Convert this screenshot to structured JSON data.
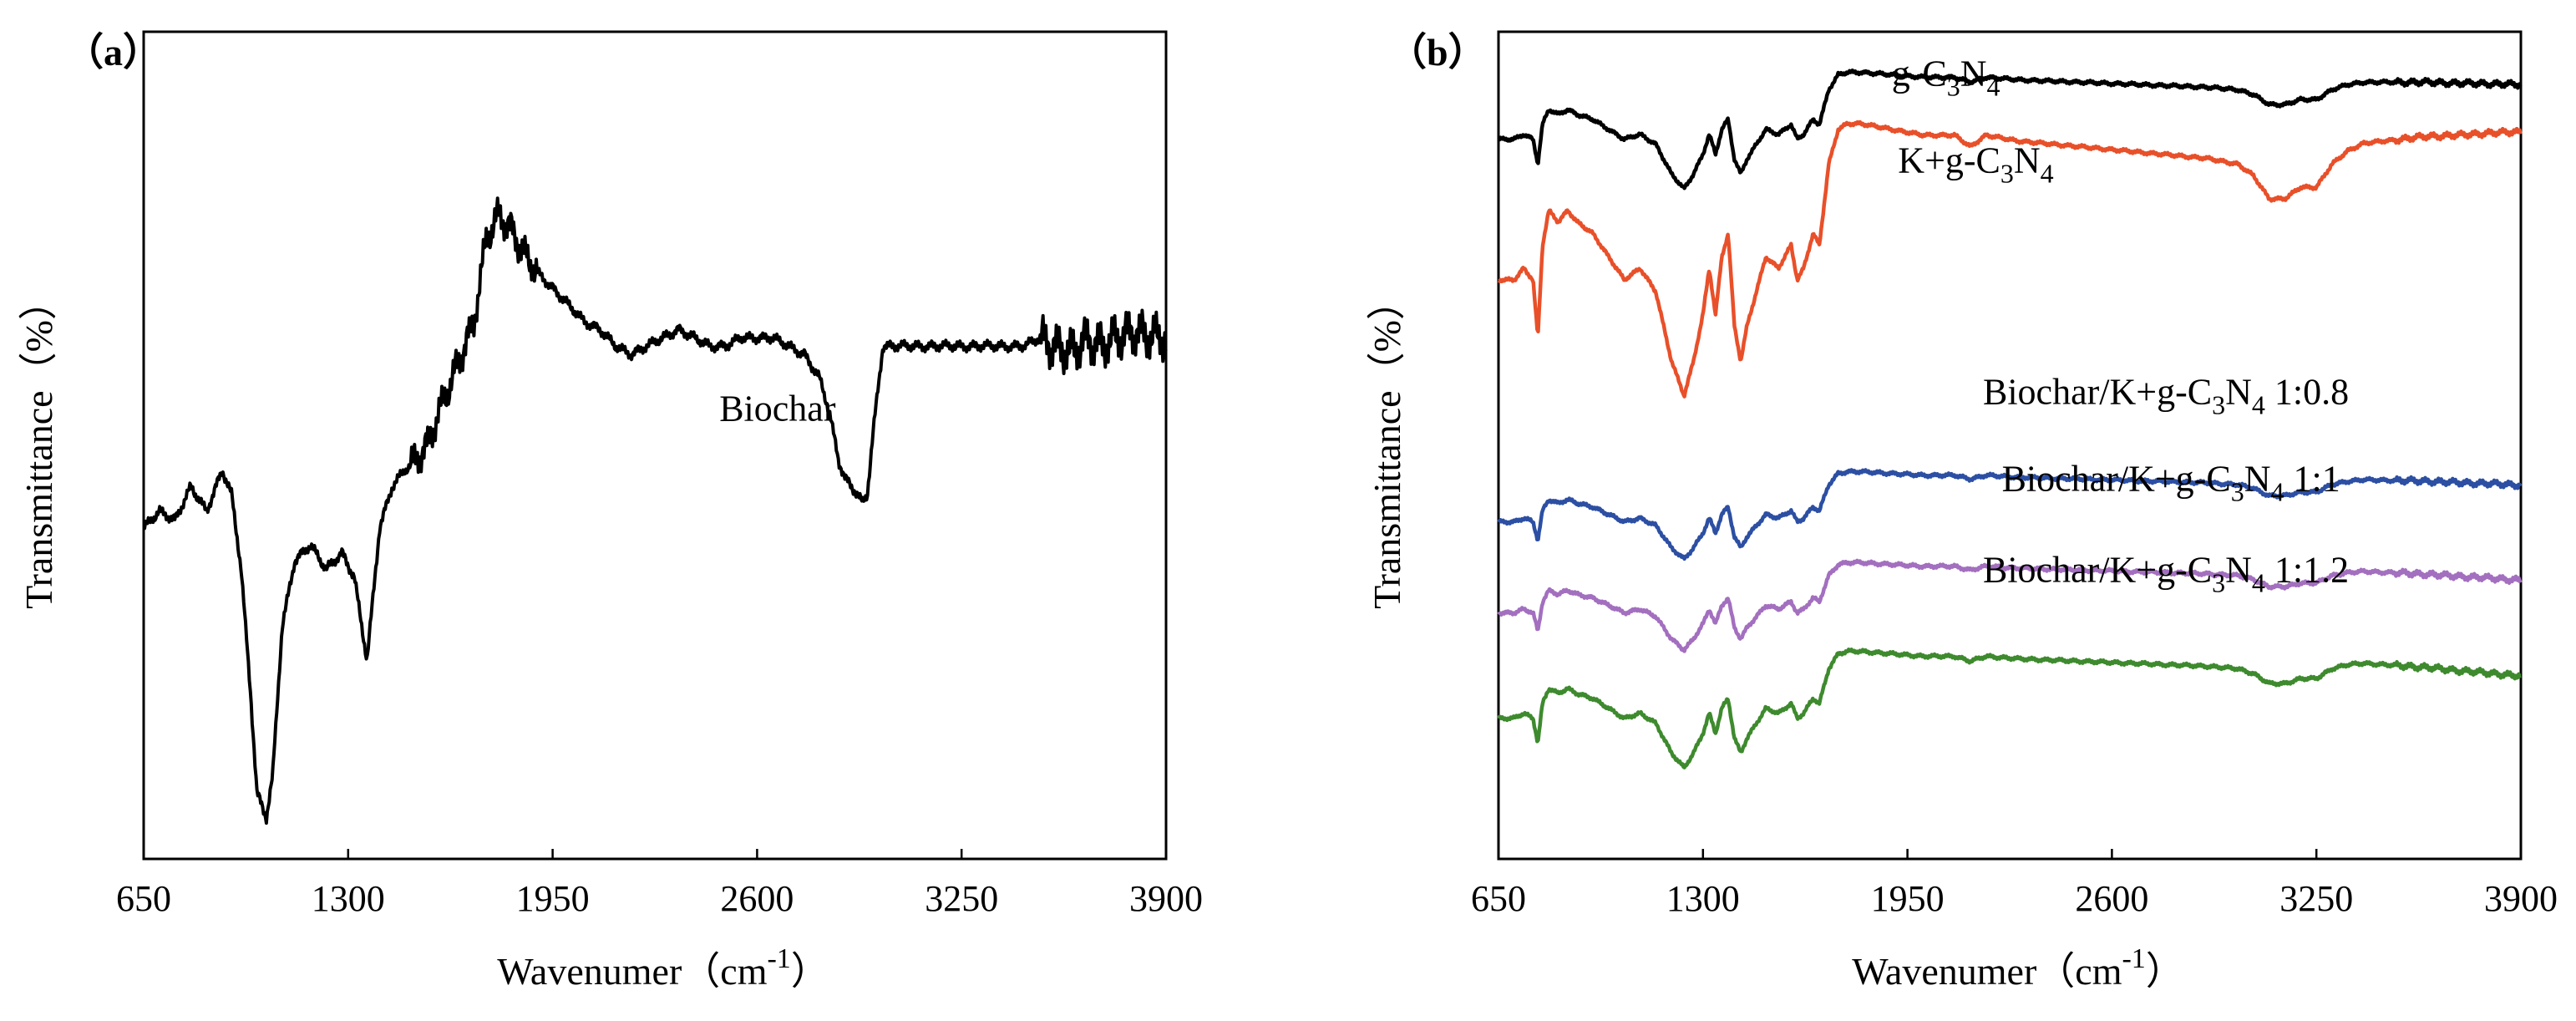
{
  "chart_data": [
    {
      "panel_label": "（a）",
      "type": "line",
      "xlabel": "Wavenumer（cm",
      "xlabel_sup": "-1",
      "xlabel_end": "）",
      "ylabel": "Transmittance（%）",
      "xlim": [
        650,
        3900
      ],
      "ylim": [
        0,
        100
      ],
      "xticks": [
        650,
        1300,
        1950,
        2600,
        3250,
        3900
      ],
      "xtick_labels": [
        "650",
        "1300",
        "1950",
        "2600",
        "3250",
        "3900"
      ],
      "series": [
        {
          "name": "Biochar",
          "color": "#000000",
          "noise_from": 3500,
          "x": [
            650,
            700,
            750,
            800,
            850,
            900,
            930,
            960,
            990,
            1010,
            1040,
            1060,
            1090,
            1130,
            1180,
            1230,
            1280,
            1320,
            1360,
            1400,
            1440,
            1480,
            1510,
            1550,
            1600,
            1650,
            1700,
            1740,
            1780,
            1820,
            1860,
            1900,
            1950,
            2000,
            2050,
            2100,
            2150,
            2200,
            2250,
            2300,
            2350,
            2400,
            2450,
            2500,
            2550,
            2600,
            2650,
            2700,
            2750,
            2800,
            2830,
            2860,
            2880,
            2900,
            2920,
            2935,
            2950,
            2970,
            3000,
            3050,
            3100,
            3150,
            3200,
            3250,
            3300,
            3350,
            3400,
            3450,
            3500,
            3550,
            3600,
            3650,
            3700,
            3750,
            3800,
            3850,
            3900
          ],
          "y": [
            40,
            42,
            41,
            45,
            42,
            47,
            44,
            35,
            20,
            8,
            5,
            10,
            28,
            36,
            38,
            35,
            37,
            34,
            24,
            40,
            45,
            47,
            48,
            50,
            55,
            60,
            65,
            75,
            78,
            76,
            73,
            71,
            69,
            67,
            65,
            64,
            62,
            61,
            62,
            63,
            64,
            63,
            62,
            62,
            63,
            63,
            63,
            62,
            61,
            58,
            54,
            48,
            46,
            45,
            44,
            43,
            44,
            52,
            62,
            62,
            62,
            62,
            62,
            62,
            62,
            62,
            62,
            62,
            63,
            62,
            61,
            63,
            62,
            63,
            64,
            63,
            63
          ]
        }
      ],
      "annotations": [
        {
          "text": "Biochar",
          "x": 2480,
          "y": 53
        }
      ]
    },
    {
      "panel_label": "（b）",
      "type": "line",
      "xlabel": "Wavenumer（cm",
      "xlabel_sup": "-1",
      "xlabel_end": "）",
      "ylabel": "Transmittance（%）",
      "xlim": [
        650,
        3900
      ],
      "ylim": [
        0,
        100
      ],
      "xticks": [
        650,
        1300,
        1950,
        2600,
        3250,
        3900
      ],
      "xtick_labels": [
        "650",
        "1300",
        "1950",
        "2600",
        "3250",
        "3900"
      ],
      "series": [
        {
          "name": "g-C3N4",
          "label_main": "g-C",
          "label_sub1": "3",
          "label_mid": "N",
          "label_sub2": "4",
          "label_suffix": "",
          "label_x": 1900,
          "label_y": 93.5,
          "color": "#000000",
          "offset": 0,
          "amplitude": 0.6,
          "tail": 0
        },
        {
          "name": "K+g-C3N4",
          "label_main": "K+g-C",
          "label_sub1": "3",
          "label_mid": "N",
          "label_sub2": "4",
          "label_suffix": "",
          "label_x": 1920,
          "label_y": 83,
          "color": "#e8502a",
          "offset": -13,
          "amplitude": 1.4,
          "tail": 2.5
        },
        {
          "name": "Biochar/K+g-C3N4 1:0.8",
          "label_main": "Biochar/K+g-C",
          "label_sub1": "3",
          "label_mid": "N",
          "label_sub2": "4",
          "label_suffix": " 1:0.8",
          "label_x": 2190,
          "label_y": 55,
          "color": "#2c4fa3",
          "offset": -47,
          "amplitude": 0.45,
          "tail": -0.5
        },
        {
          "name": "Biochar/K+g-C3N4 1:1",
          "label_main": "Biochar/K+g-C",
          "label_sub1": "3",
          "label_mid": "N",
          "label_sub2": "4",
          "label_suffix": " 1:1",
          "label_x": 2250,
          "label_y": 44.5,
          "color": "#a36fbf",
          "offset": -58,
          "amplitude": 0.45,
          "tail": -1
        },
        {
          "name": "Biochar/K+g-C3N4 1:1.2",
          "label_main": "Biochar/K+g-C",
          "label_sub1": "3",
          "label_mid": "N",
          "label_sub2": "4",
          "label_suffix": " 1:1.2",
          "label_x": 2190,
          "label_y": 33.5,
          "color": "#3e8a2e",
          "offset": -70,
          "amplitude": 0.6,
          "tail": -1.5
        }
      ],
      "base_profile": {
        "x": [
          650,
          700,
          730,
          760,
          775,
          790,
          810,
          840,
          870,
          900,
          950,
          1000,
          1050,
          1100,
          1150,
          1200,
          1240,
          1270,
          1300,
          1320,
          1340,
          1360,
          1380,
          1400,
          1420,
          1440,
          1470,
          1500,
          1540,
          1580,
          1600,
          1620,
          1650,
          1670,
          1700,
          1730,
          1760,
          1800,
          1900,
          2000,
          2100,
          2150,
          2200,
          2300,
          2500,
          2700,
          2900,
          3000,
          3050,
          3100,
          3150,
          3200,
          3250,
          3300,
          3350,
          3400,
          3500,
          3600,
          3700,
          3800,
          3900
        ],
        "y": [
          85,
          85,
          86,
          85,
          80,
          88,
          91,
          90,
          91,
          90,
          89,
          87,
          85,
          86,
          84,
          78,
          75,
          78,
          82,
          86,
          82,
          87,
          89,
          81,
          78,
          81,
          84,
          87,
          86,
          88,
          85,
          86,
          89,
          88,
          95,
          98,
          98.5,
          98.5,
          98,
          97.5,
          97.5,
          96.5,
          97.5,
          97,
          96.5,
          96,
          95.5,
          95,
          94,
          92,
          92,
          93,
          93,
          95,
          96,
          96.5,
          96.5,
          96.5,
          96.3,
          96.2,
          96
        ]
      }
    }
  ]
}
